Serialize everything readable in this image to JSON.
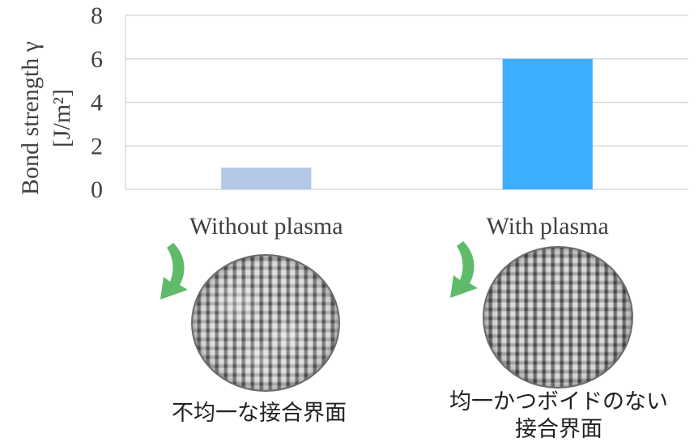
{
  "chart_data": {
    "type": "bar",
    "categories": [
      "Without plasma",
      "With plasma"
    ],
    "values": [
      1.0,
      6.0
    ],
    "bar_colors": [
      "#b4c7e7",
      "#3daeff"
    ],
    "ylabel": "Bond strength γ [J/m²]",
    "ylabel_lines": [
      "Bond strength γ",
      "[J/m²]"
    ],
    "ylim": [
      0,
      8
    ],
    "yticks": [
      "0",
      "2",
      "4",
      "6",
      "8"
    ],
    "grid": true
  },
  "images": [
    {
      "name": "wafer-without-plasma",
      "caption_lines": [
        "不均一な接合界面"
      ],
      "arrow_icon": "curved-arrow-down-icon",
      "arrow_color": "#5fba6a"
    },
    {
      "name": "wafer-with-plasma",
      "caption_lines": [
        "均一かつボイドのない",
        "接合界面"
      ],
      "arrow_icon": "curved-arrow-down-icon",
      "arrow_color": "#5fba6a"
    }
  ]
}
